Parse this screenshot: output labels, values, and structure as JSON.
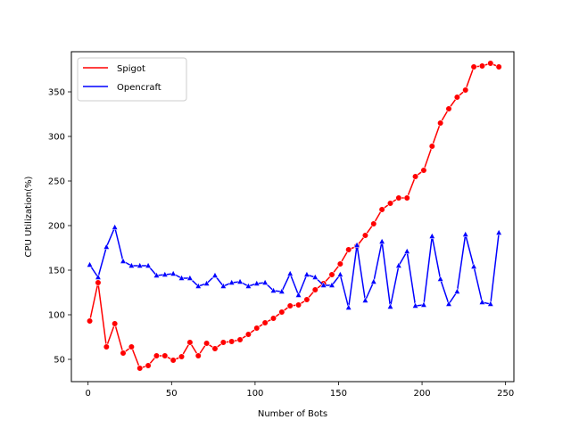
{
  "chart_data": {
    "type": "line",
    "title": "",
    "xlabel": "Number of Bots",
    "ylabel": "CPU Utilization(%)",
    "xlim": [
      -10,
      255
    ],
    "ylim": [
      25,
      395
    ],
    "xticks": [
      0,
      50,
      100,
      150,
      200,
      250
    ],
    "yticks": [
      50,
      100,
      150,
      200,
      250,
      300,
      350
    ],
    "grid": false,
    "legend_position": "top-left",
    "x": [
      1,
      6,
      11,
      16,
      21,
      26,
      31,
      36,
      41,
      46,
      51,
      56,
      61,
      66,
      71,
      76,
      81,
      86,
      91,
      96,
      101,
      106,
      111,
      116,
      121,
      126,
      131,
      136,
      141,
      146,
      151,
      156,
      161,
      166,
      171,
      176,
      181,
      186,
      191,
      196,
      201,
      206,
      211,
      216,
      221,
      226,
      231,
      236,
      241,
      246
    ],
    "series": [
      {
        "name": "Spigot",
        "color": "#ff0000",
        "marker": "circle",
        "values": [
          93,
          136,
          64,
          90,
          57,
          64,
          40,
          43,
          54,
          54,
          49,
          53,
          69,
          54,
          68,
          62,
          69,
          70,
          72,
          78,
          85,
          91,
          96,
          103,
          110,
          111,
          117,
          128,
          135,
          145,
          157,
          173,
          177,
          189,
          202,
          218,
          225,
          231,
          231,
          255,
          262,
          289,
          315,
          331,
          344,
          352,
          378,
          379,
          382,
          378
        ]
      },
      {
        "name": "Opencraft",
        "color": "#0000ff",
        "marker": "triangle",
        "values": [
          156,
          142,
          176,
          198,
          160,
          155,
          155,
          155,
          144,
          145,
          146,
          141,
          141,
          132,
          135,
          144,
          132,
          136,
          137,
          132,
          135,
          136,
          127,
          126,
          146,
          122,
          145,
          142,
          133,
          133,
          145,
          108,
          178,
          116,
          137,
          182,
          109,
          155,
          171,
          110,
          111,
          188,
          140,
          112,
          126,
          190,
          154,
          114,
          112,
          192
        ]
      }
    ]
  }
}
